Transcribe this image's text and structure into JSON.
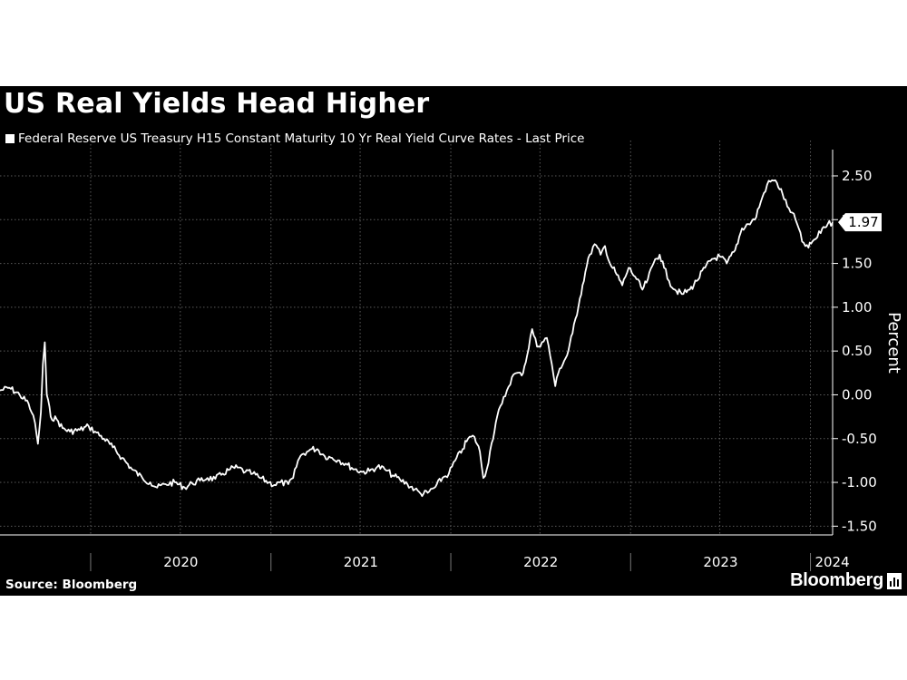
{
  "chart": {
    "title": "US Real Yields Head Higher",
    "source": "Source: Bloomberg",
    "brand": "Bloomberg"
  },
  "chart_data": {
    "type": "line",
    "title": "US Real Yields Head Higher",
    "xlabel": "",
    "ylabel": "Percent",
    "ylim": [
      -1.6,
      2.8
    ],
    "yticks": [
      2.5,
      2.0,
      1.5,
      1.0,
      0.5,
      0.0,
      -0.5,
      -1.0,
      -1.5
    ],
    "ytick_labels": [
      "2.50",
      "2.00",
      "1.50",
      "1.00",
      "0.50",
      "0.00",
      "-0.50",
      "-1.00",
      "-1.50"
    ],
    "xlim": [
      "2019-07-01",
      "2024-02-15"
    ],
    "x_tick_labels": [
      "2020",
      "2021",
      "2022",
      "2023",
      "2024"
    ],
    "grid": true,
    "legend_position": "top-left",
    "line_color": "#ffffff",
    "last_value_label": "1.97",
    "series": [
      {
        "name": "Federal Reserve US Treasury H15 Constant Maturity 10 Yr Real Yield Curve Rates - Last Price",
        "points": [
          [
            "2019-07-01",
            0.05
          ],
          [
            "2019-07-20",
            0.08
          ],
          [
            "2019-08-10",
            0.0
          ],
          [
            "2019-08-28",
            -0.1
          ],
          [
            "2019-09-03",
            -0.2
          ],
          [
            "2019-09-10",
            -0.32
          ],
          [
            "2019-09-16",
            -0.56
          ],
          [
            "2019-09-22",
            -0.2
          ],
          [
            "2019-09-26",
            0.35
          ],
          [
            "2019-09-30",
            0.6
          ],
          [
            "2019-10-04",
            0.0
          ],
          [
            "2019-10-12",
            -0.25
          ],
          [
            "2019-10-24",
            -0.28
          ],
          [
            "2019-11-05",
            -0.38
          ],
          [
            "2019-11-20",
            -0.42
          ],
          [
            "2019-12-10",
            -0.4
          ],
          [
            "2019-12-28",
            -0.36
          ],
          [
            "2020-01-10",
            -0.42
          ],
          [
            "2020-01-28",
            -0.5
          ],
          [
            "2020-02-15",
            -0.6
          ],
          [
            "2020-03-05",
            -0.72
          ],
          [
            "2020-03-25",
            -0.85
          ],
          [
            "2020-04-15",
            -0.95
          ],
          [
            "2020-05-01",
            -1.0
          ],
          [
            "2020-05-15",
            -1.06
          ],
          [
            "2020-06-01",
            -1.02
          ],
          [
            "2020-06-20",
            -1.0
          ],
          [
            "2020-07-10",
            -1.06
          ],
          [
            "2020-07-25",
            -1.01
          ],
          [
            "2020-08-10",
            -0.98
          ],
          [
            "2020-08-25",
            -0.95
          ],
          [
            "2020-09-10",
            -0.96
          ],
          [
            "2020-09-25",
            -0.9
          ],
          [
            "2020-10-10",
            -0.85
          ],
          [
            "2020-10-25",
            -0.83
          ],
          [
            "2020-11-10",
            -0.88
          ],
          [
            "2020-11-25",
            -0.9
          ],
          [
            "2020-12-10",
            -0.95
          ],
          [
            "2020-12-28",
            -1.0
          ],
          [
            "2021-01-08",
            -1.03
          ],
          [
            "2021-01-20",
            -1.0
          ],
          [
            "2021-02-05",
            -1.02
          ],
          [
            "2021-02-15",
            -0.95
          ],
          [
            "2021-02-25",
            -0.75
          ],
          [
            "2021-03-05",
            -0.68
          ],
          [
            "2021-03-15",
            -0.65
          ],
          [
            "2021-03-25",
            -0.62
          ],
          [
            "2021-04-05",
            -0.62
          ],
          [
            "2021-04-20",
            -0.7
          ],
          [
            "2021-05-05",
            -0.72
          ],
          [
            "2021-05-20",
            -0.75
          ],
          [
            "2021-06-05",
            -0.8
          ],
          [
            "2021-06-20",
            -0.85
          ],
          [
            "2021-07-05",
            -0.88
          ],
          [
            "2021-07-20",
            -0.87
          ],
          [
            "2021-08-05",
            -0.82
          ],
          [
            "2021-08-20",
            -0.85
          ],
          [
            "2021-09-05",
            -0.92
          ],
          [
            "2021-09-20",
            -0.97
          ],
          [
            "2021-10-05",
            -1.02
          ],
          [
            "2021-10-20",
            -1.08
          ],
          [
            "2021-11-01",
            -1.13
          ],
          [
            "2021-11-15",
            -1.12
          ],
          [
            "2021-12-01",
            -1.05
          ],
          [
            "2021-12-15",
            -0.95
          ],
          [
            "2021-12-28",
            -0.9
          ],
          [
            "2022-01-10",
            -0.75
          ],
          [
            "2022-01-25",
            -0.62
          ],
          [
            "2022-02-05",
            -0.5
          ],
          [
            "2022-02-18",
            -0.48
          ],
          [
            "2022-03-01",
            -0.65
          ],
          [
            "2022-03-08",
            -0.95
          ],
          [
            "2022-03-15",
            -0.85
          ],
          [
            "2022-03-25",
            -0.55
          ],
          [
            "2022-04-05",
            -0.25
          ],
          [
            "2022-04-15",
            -0.1
          ],
          [
            "2022-04-25",
            0.05
          ],
          [
            "2022-05-05",
            0.2
          ],
          [
            "2022-05-15",
            0.25
          ],
          [
            "2022-05-25",
            0.22
          ],
          [
            "2022-06-05",
            0.45
          ],
          [
            "2022-06-15",
            0.75
          ],
          [
            "2022-06-25",
            0.55
          ],
          [
            "2022-07-05",
            0.6
          ],
          [
            "2022-07-15",
            0.65
          ],
          [
            "2022-07-25",
            0.35
          ],
          [
            "2022-08-01",
            0.1
          ],
          [
            "2022-08-10",
            0.3
          ],
          [
            "2022-08-25",
            0.45
          ],
          [
            "2022-09-05",
            0.7
          ],
          [
            "2022-09-20",
            1.1
          ],
          [
            "2022-10-01",
            1.4
          ],
          [
            "2022-10-10",
            1.6
          ],
          [
            "2022-10-20",
            1.72
          ],
          [
            "2022-11-01",
            1.6
          ],
          [
            "2022-11-10",
            1.7
          ],
          [
            "2022-11-20",
            1.5
          ],
          [
            "2022-12-01",
            1.4
          ],
          [
            "2022-12-15",
            1.25
          ],
          [
            "2022-12-28",
            1.45
          ],
          [
            "2023-01-10",
            1.35
          ],
          [
            "2023-01-25",
            1.2
          ],
          [
            "2023-02-05",
            1.32
          ],
          [
            "2023-02-20",
            1.55
          ],
          [
            "2023-03-01",
            1.6
          ],
          [
            "2023-03-10",
            1.45
          ],
          [
            "2023-03-20",
            1.3
          ],
          [
            "2023-04-01",
            1.2
          ],
          [
            "2023-04-15",
            1.15
          ],
          [
            "2023-05-01",
            1.2
          ],
          [
            "2023-05-15",
            1.3
          ],
          [
            "2023-06-01",
            1.45
          ],
          [
            "2023-06-15",
            1.55
          ],
          [
            "2023-07-01",
            1.58
          ],
          [
            "2023-07-15",
            1.5
          ],
          [
            "2023-08-01",
            1.65
          ],
          [
            "2023-08-15",
            1.9
          ],
          [
            "2023-08-28",
            1.95
          ],
          [
            "2023-09-10",
            2.0
          ],
          [
            "2023-09-22",
            2.2
          ],
          [
            "2023-10-05",
            2.4
          ],
          [
            "2023-10-15",
            2.45
          ],
          [
            "2023-10-25",
            2.42
          ],
          [
            "2023-11-05",
            2.3
          ],
          [
            "2023-11-15",
            2.15
          ],
          [
            "2023-11-25",
            2.08
          ],
          [
            "2023-12-05",
            1.95
          ],
          [
            "2023-12-15",
            1.75
          ],
          [
            "2023-12-28",
            1.68
          ],
          [
            "2024-01-05",
            1.75
          ],
          [
            "2024-01-15",
            1.8
          ],
          [
            "2024-01-25",
            1.9
          ],
          [
            "2024-02-05",
            1.95
          ],
          [
            "2024-02-15",
            1.97
          ]
        ]
      }
    ]
  }
}
